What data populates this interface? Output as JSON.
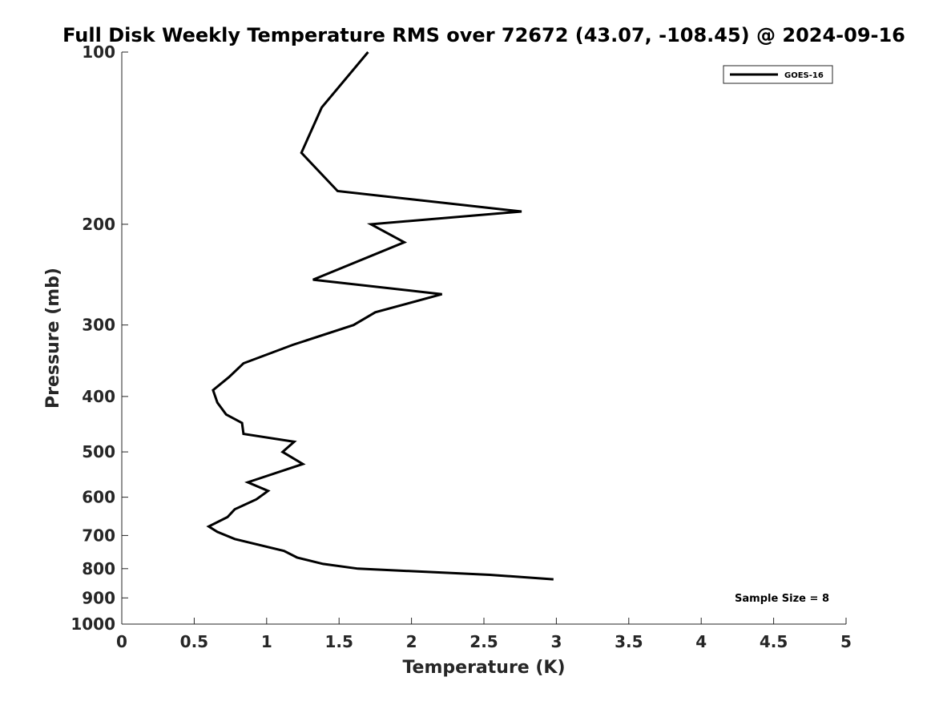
{
  "chart_data": {
    "type": "line",
    "title": "Full Disk Weekly Temperature RMS over 72672 (43.07, -108.45) @ 2024-09-16",
    "xlabel": "Temperature (K)",
    "ylabel": "Pressure (mb)",
    "xlim": [
      0,
      5
    ],
    "ylim": [
      1000,
      100
    ],
    "yscale": "log",
    "grid": false,
    "legend_position": "top-right",
    "xticks": [
      0,
      0.5,
      1,
      1.5,
      2,
      2.5,
      3,
      3.5,
      4,
      4.5,
      5
    ],
    "xtick_labels": [
      "0",
      "0.5",
      "1",
      "1.5",
      "2",
      "2.5",
      "3",
      "3.5",
      "4",
      "4.5",
      "5"
    ],
    "yticks": [
      100,
      200,
      300,
      400,
      500,
      600,
      700,
      800,
      900,
      1000
    ],
    "ytick_labels": [
      "100",
      "200",
      "300",
      "400",
      "500",
      "600",
      "700",
      "800",
      "900",
      "1000"
    ],
    "annotation": "Sample Size = 8",
    "series": [
      {
        "name": "GOES-16",
        "color": "#000000",
        "points": [
          {
            "x": 1.7,
            "p": 100
          },
          {
            "x": 1.38,
            "p": 125
          },
          {
            "x": 1.24,
            "p": 150
          },
          {
            "x": 1.49,
            "p": 175
          },
          {
            "x": 2.76,
            "p": 190
          },
          {
            "x": 1.72,
            "p": 200
          },
          {
            "x": 1.95,
            "p": 215
          },
          {
            "x": 1.32,
            "p": 250
          },
          {
            "x": 2.21,
            "p": 265
          },
          {
            "x": 1.75,
            "p": 285
          },
          {
            "x": 1.6,
            "p": 300
          },
          {
            "x": 1.18,
            "p": 325
          },
          {
            "x": 0.84,
            "p": 350
          },
          {
            "x": 0.74,
            "p": 370
          },
          {
            "x": 0.63,
            "p": 390
          },
          {
            "x": 0.66,
            "p": 410
          },
          {
            "x": 0.72,
            "p": 430
          },
          {
            "x": 0.83,
            "p": 445
          },
          {
            "x": 0.84,
            "p": 465
          },
          {
            "x": 1.19,
            "p": 480
          },
          {
            "x": 1.11,
            "p": 500
          },
          {
            "x": 1.25,
            "p": 525
          },
          {
            "x": 0.87,
            "p": 565
          },
          {
            "x": 1.01,
            "p": 585
          },
          {
            "x": 0.93,
            "p": 605
          },
          {
            "x": 0.78,
            "p": 630
          },
          {
            "x": 0.73,
            "p": 650
          },
          {
            "x": 0.6,
            "p": 675
          },
          {
            "x": 0.66,
            "p": 690
          },
          {
            "x": 0.78,
            "p": 710
          },
          {
            "x": 1.12,
            "p": 745
          },
          {
            "x": 1.21,
            "p": 765
          },
          {
            "x": 1.39,
            "p": 785
          },
          {
            "x": 1.63,
            "p": 800
          },
          {
            "x": 2.54,
            "p": 820
          },
          {
            "x": 2.98,
            "p": 835
          }
        ]
      }
    ]
  }
}
